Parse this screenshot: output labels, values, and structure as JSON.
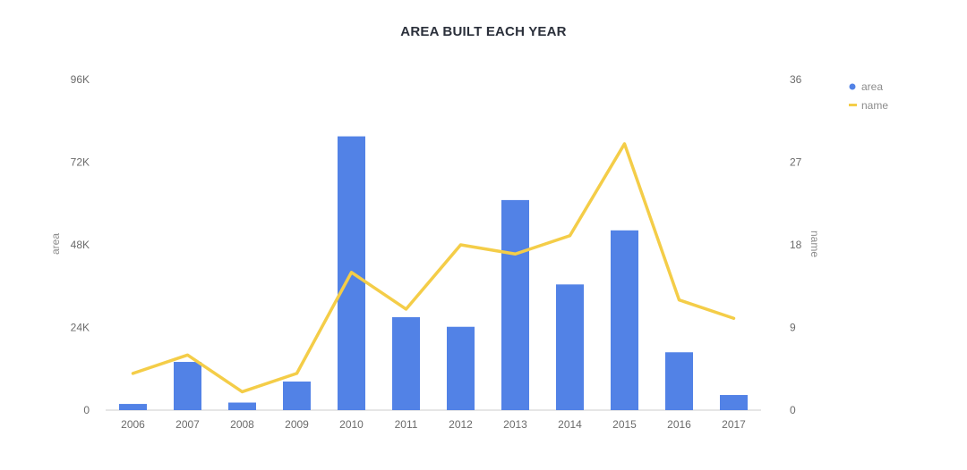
{
  "chart_data": {
    "type": "bar",
    "title": "AREA BUILT EACH YEAR",
    "categories": [
      "2006",
      "2007",
      "2008",
      "2009",
      "2010",
      "2011",
      "2012",
      "2013",
      "2014",
      "2015",
      "2016",
      "2017"
    ],
    "series": [
      {
        "name": "area",
        "type": "bar",
        "axis": "left",
        "color": "#5282e6",
        "values": [
          1800,
          14000,
          2200,
          8300,
          79500,
          27000,
          24200,
          61000,
          36500,
          52200,
          16800,
          4400
        ]
      },
      {
        "name": "name",
        "type": "line",
        "axis": "right",
        "color": "#f4cd48",
        "values": [
          4,
          6,
          2,
          4,
          15,
          11,
          18,
          17,
          19,
          29,
          12,
          10
        ]
      }
    ],
    "y_left": {
      "label": "area",
      "min": 0,
      "max": 96000,
      "ticks": [
        "0",
        "24K",
        "48K",
        "72K",
        "96K"
      ]
    },
    "y_right": {
      "label": "name",
      "min": 0,
      "max": 36,
      "ticks": [
        "0",
        "9",
        "18",
        "27",
        "36"
      ]
    },
    "legend": {
      "placement": "top-right"
    },
    "grid": false
  }
}
